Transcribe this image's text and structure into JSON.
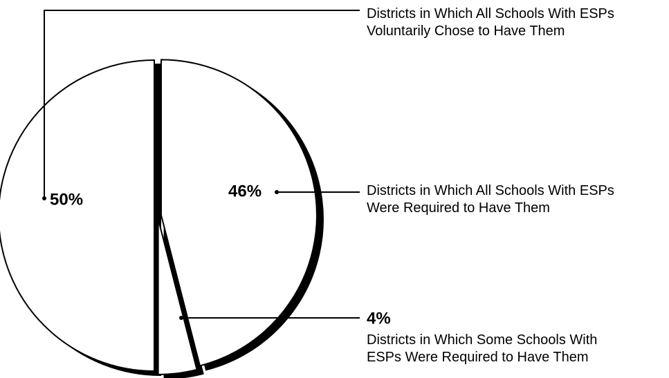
{
  "chart_data": {
    "type": "pie",
    "categories": [
      "Districts in Which All Schools With ESPs\nWere Required to Have Them",
      "Districts in Which Some Schools With\nESPs Were Required to Have Them",
      "Districts in Which All Schools With ESPs\nVoluntarily Chose to Have Them"
    ],
    "values": [
      46,
      4,
      50
    ],
    "value_labels": [
      "46%",
      "4%",
      "50%"
    ],
    "color": "#ffffff"
  }
}
